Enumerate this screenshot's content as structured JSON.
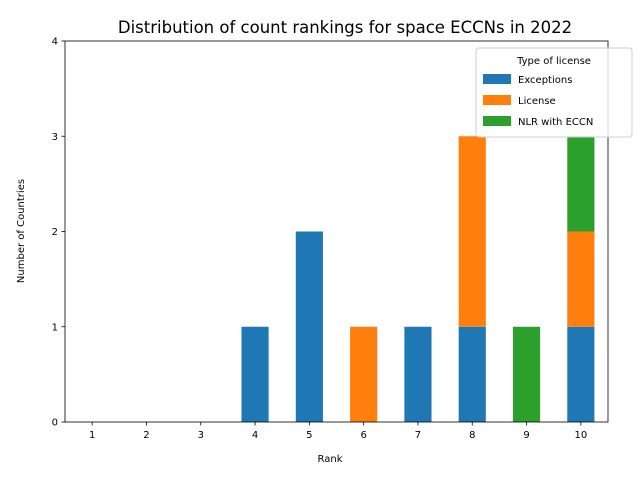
{
  "chart_data": {
    "type": "bar",
    "stacked": true,
    "title": "Distribution of count rankings for space ECCNs in 2022",
    "xlabel": "Rank",
    "ylabel": "Number of Countries",
    "categories": [
      "1",
      "2",
      "3",
      "4",
      "5",
      "6",
      "7",
      "8",
      "9",
      "10"
    ],
    "ylim": [
      0,
      4
    ],
    "yticks": [
      0,
      1,
      2,
      3,
      4
    ],
    "grid": false,
    "legend": {
      "title": "Type of license",
      "placement": "top-right"
    },
    "series": [
      {
        "name": "Exceptions",
        "color": "#1f77b4",
        "values": [
          0,
          0,
          0,
          1,
          2,
          0,
          1,
          1,
          0,
          1
        ]
      },
      {
        "name": "License",
        "color": "#ff7f0e",
        "values": [
          0,
          0,
          0,
          0,
          0,
          1,
          0,
          2,
          0,
          1
        ]
      },
      {
        "name": "NLR with ECCN",
        "color": "#2ca02c",
        "values": [
          0,
          0,
          0,
          0,
          0,
          0,
          0,
          0,
          1,
          1
        ]
      }
    ]
  }
}
